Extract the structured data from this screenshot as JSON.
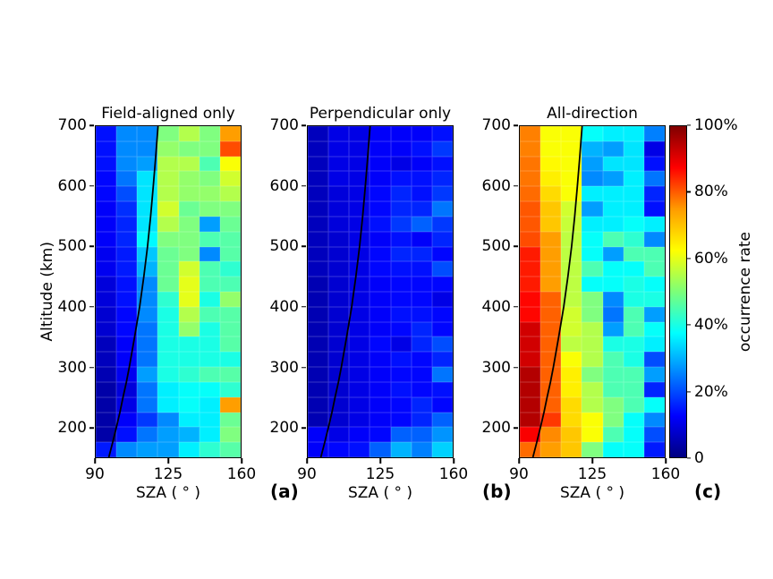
{
  "chart_data": {
    "type": "heatmap",
    "colormap": "jet",
    "xlabel": "SZA ( ° )",
    "ylabel": "Altitude (km)",
    "x_range_deg": [
      90,
      160
    ],
    "y_range_km": [
      150,
      700
    ],
    "x_bin_width_deg": 10,
    "y_bin_height_km": 25,
    "x_ticks": [
      90,
      125,
      160
    ],
    "y_ticks": [
      700,
      600,
      500,
      400,
      300,
      200
    ],
    "grid_rows_order": "top row = 675-700 km, bottom row = 150-175 km; columns left to right = SZA 90-160 in 10 deg bins",
    "colorbar": {
      "label": "occurrence rate",
      "min": 0,
      "max": 100,
      "tick_values": [
        0,
        20,
        40,
        60,
        80,
        100
      ],
      "tick_labels": [
        "0",
        "20%",
        "40%",
        "60%",
        "80%",
        "100%"
      ]
    },
    "terminator_curve": {
      "note": "black curve on each panel; points are [altitude_km, sza_deg]",
      "points": [
        [
          150,
          96.3
        ],
        [
          175,
          98.2
        ],
        [
          200,
          100
        ],
        [
          225,
          101.7
        ],
        [
          250,
          103.2
        ],
        [
          275,
          104.8
        ],
        [
          300,
          106.2
        ],
        [
          350,
          108.8
        ],
        [
          400,
          111.2
        ],
        [
          450,
          113.2
        ],
        [
          500,
          115
        ],
        [
          550,
          116.5
        ],
        [
          600,
          117.8
        ],
        [
          650,
          119
        ],
        [
          700,
          120.1
        ]
      ]
    },
    "panels": [
      {
        "tag": "(a)",
        "title": "Field-aligned only",
        "occurrence_pct": [
          [
            14,
            26,
            26,
            50,
            55,
            50,
            72
          ],
          [
            14,
            26,
            26,
            52,
            50,
            50,
            80
          ],
          [
            14,
            26,
            28,
            55,
            55,
            45,
            62
          ],
          [
            13,
            24,
            35,
            55,
            52,
            50,
            58
          ],
          [
            13,
            20,
            35,
            55,
            52,
            52,
            55
          ],
          [
            12,
            17,
            35,
            58,
            48,
            50,
            50
          ],
          [
            12,
            16,
            35,
            55,
            50,
            28,
            48
          ],
          [
            12,
            16,
            37,
            50,
            50,
            45,
            46
          ],
          [
            11,
            15,
            32,
            48,
            50,
            26,
            46
          ],
          [
            11,
            15,
            30,
            48,
            58,
            45,
            42
          ],
          [
            9,
            14,
            26,
            48,
            60,
            45,
            45
          ],
          [
            9,
            14,
            26,
            42,
            60,
            40,
            52
          ],
          [
            8,
            13,
            26,
            40,
            55,
            45,
            46
          ],
          [
            8,
            13,
            24,
            40,
            52,
            40,
            46
          ],
          [
            6,
            12,
            24,
            40,
            40,
            40,
            46
          ],
          [
            6,
            12,
            24,
            40,
            40,
            40,
            40
          ],
          [
            5,
            11,
            28,
            40,
            42,
            45,
            46
          ],
          [
            4,
            9,
            24,
            36,
            38,
            38,
            42
          ],
          [
            4,
            10,
            24,
            36,
            38,
            36,
            72
          ],
          [
            4,
            12,
            18,
            26,
            36,
            36,
            48
          ],
          [
            4,
            14,
            24,
            28,
            30,
            36,
            50
          ],
          [
            15,
            26,
            28,
            28,
            36,
            42,
            46
          ]
        ]
      },
      {
        "tag": "(b)",
        "title": "Perpendicular only",
        "occurrence_pct": [
          [
            6,
            10,
            10,
            12,
            12,
            12,
            14
          ],
          [
            6,
            10,
            10,
            12,
            12,
            14,
            18
          ],
          [
            6,
            10,
            10,
            12,
            10,
            12,
            14
          ],
          [
            6,
            10,
            10,
            12,
            14,
            14,
            16
          ],
          [
            6,
            9,
            10,
            13,
            16,
            14,
            18
          ],
          [
            6,
            9,
            10,
            13,
            16,
            16,
            24
          ],
          [
            6,
            9,
            10,
            14,
            18,
            22,
            18
          ],
          [
            6,
            8,
            10,
            12,
            14,
            12,
            16
          ],
          [
            6,
            8,
            10,
            13,
            16,
            16,
            13
          ],
          [
            6,
            8,
            10,
            13,
            14,
            14,
            20
          ],
          [
            5,
            8,
            10,
            12,
            13,
            13,
            13
          ],
          [
            5,
            8,
            10,
            12,
            13,
            13,
            10
          ],
          [
            5,
            8,
            10,
            12,
            14,
            14,
            13
          ],
          [
            5,
            8,
            10,
            12,
            13,
            16,
            13
          ],
          [
            5,
            8,
            10,
            13,
            10,
            16,
            20
          ],
          [
            5,
            8,
            10,
            12,
            14,
            13,
            16
          ],
          [
            5,
            8,
            10,
            12,
            13,
            13,
            24
          ],
          [
            5,
            8,
            10,
            12,
            14,
            13,
            14
          ],
          [
            5,
            8,
            10,
            12,
            13,
            16,
            13
          ],
          [
            5,
            8,
            10,
            12,
            13,
            16,
            22
          ],
          [
            12,
            10,
            12,
            13,
            22,
            22,
            27
          ],
          [
            12,
            13,
            14,
            22,
            30,
            25,
            33
          ]
        ]
      },
      {
        "tag": "(c)",
        "title": "All-direction",
        "occurrence_pct": [
          [
            75,
            62,
            62,
            38,
            36,
            36,
            25
          ],
          [
            75,
            62,
            62,
            30,
            28,
            35,
            10
          ],
          [
            76,
            63,
            62,
            28,
            35,
            35,
            14
          ],
          [
            76,
            64,
            62,
            26,
            28,
            36,
            24
          ],
          [
            77,
            66,
            62,
            36,
            36,
            36,
            16
          ],
          [
            79,
            68,
            58,
            28,
            36,
            36,
            14
          ],
          [
            79,
            68,
            57,
            36,
            36,
            38,
            36
          ],
          [
            80,
            72,
            56,
            38,
            45,
            42,
            26
          ],
          [
            85,
            72,
            56,
            38,
            28,
            45,
            45
          ],
          [
            85,
            72,
            56,
            45,
            38,
            38,
            45
          ],
          [
            85,
            72,
            56,
            38,
            38,
            40,
            38
          ],
          [
            87,
            78,
            56,
            50,
            26,
            40,
            40
          ],
          [
            87,
            78,
            58,
            50,
            24,
            45,
            28
          ],
          [
            92,
            78,
            58,
            55,
            28,
            45,
            38
          ],
          [
            92,
            78,
            56,
            55,
            40,
            40,
            36
          ],
          [
            92,
            78,
            62,
            55,
            45,
            40,
            20
          ],
          [
            95,
            78,
            64,
            50,
            45,
            45,
            28
          ],
          [
            95,
            78,
            64,
            55,
            45,
            45,
            16
          ],
          [
            95,
            78,
            66,
            55,
            50,
            45,
            38
          ],
          [
            95,
            82,
            66,
            62,
            50,
            38,
            26
          ],
          [
            88,
            74,
            68,
            62,
            45,
            38,
            20
          ],
          [
            77,
            72,
            68,
            50,
            38,
            38,
            15
          ]
        ]
      }
    ]
  }
}
